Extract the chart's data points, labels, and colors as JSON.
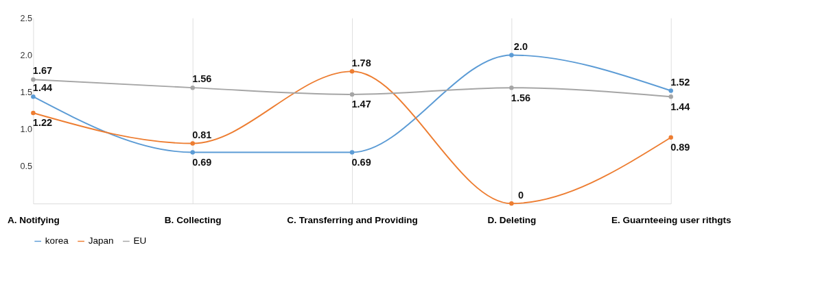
{
  "chart_data": {
    "type": "line",
    "categories": [
      "A. Notifying",
      "B. Collecting",
      "C. Transferring and Providing",
      "D. Deleting",
      "E. Guarnteeing user rithgts"
    ],
    "series": [
      {
        "name": "korea",
        "color": "#5b9bd5",
        "values": [
          1.44,
          0.69,
          0.69,
          2.0,
          1.52
        ],
        "value_labels": [
          "1.44",
          "0.69",
          "0.69",
          "2.0",
          "1.52"
        ]
      },
      {
        "name": "Japan",
        "color": "#ed7d31",
        "values": [
          1.22,
          0.81,
          1.78,
          0,
          0.89
        ],
        "value_labels": [
          "1.22",
          "0.81",
          "1.78",
          "0",
          "0.89"
        ]
      },
      {
        "name": "EU",
        "color": "#a5a5a5",
        "values": [
          1.67,
          1.56,
          1.47,
          1.56,
          1.44
        ],
        "value_labels": [
          "1.67",
          "1.56",
          "1.47",
          "1.56",
          "1.44"
        ]
      }
    ],
    "ylim": [
      0,
      2.5
    ],
    "yticks": [
      {
        "value": 0.5,
        "label": "0.5"
      },
      {
        "value": 1,
        "label": "1.0"
      },
      {
        "value": 1.5,
        "label": "1.5"
      },
      {
        "value": 2,
        "label": "2.0"
      },
      {
        "value": 2.5,
        "label": "2.5"
      }
    ],
    "grid": "x",
    "legend": "bottom",
    "marker": "circle",
    "line_style": "solid"
  }
}
